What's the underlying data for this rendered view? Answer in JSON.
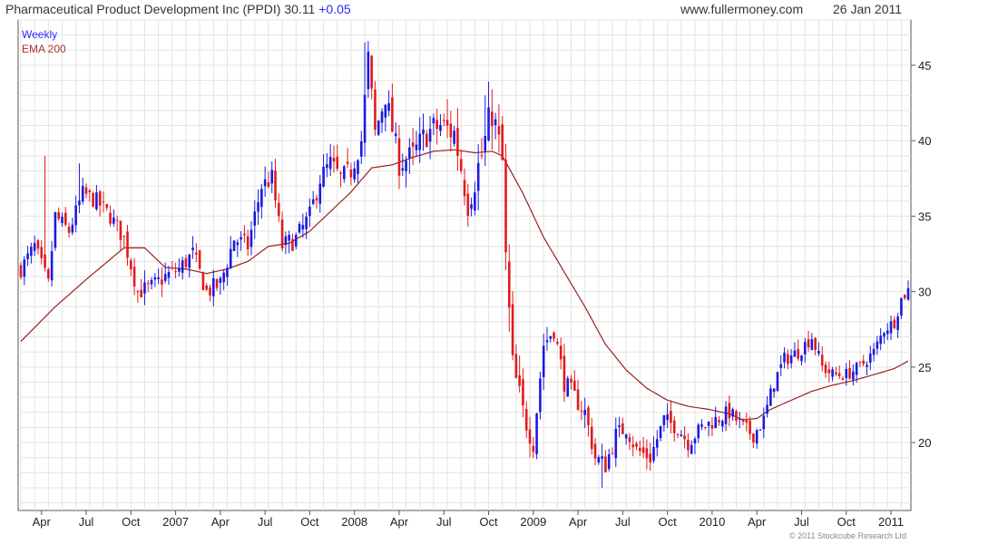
{
  "header": {
    "title": "Pharmaceutical Product Development Inc (PPDI) 30.11",
    "change": "+0.05",
    "site": "www.fullermoney.com",
    "date": "26 Jan 2011"
  },
  "footer": {
    "copyright": "© 2011 Stockcube Research Ltd"
  },
  "colors": {
    "up": "#1a1adf",
    "down": "#e01b1b",
    "ema": "#9a2020",
    "grid": "#e3e3e3",
    "axis": "#555555"
  },
  "chart_data": {
    "type": "candlestick",
    "legend": [
      "Weekly",
      "EMA 200"
    ],
    "ylim": [
      15.5,
      48
    ],
    "y_ticks": [
      20,
      25,
      30,
      35,
      40,
      45
    ],
    "x_ticks": [
      "Apr",
      "Jul",
      "Oct",
      "2007",
      "Apr",
      "Jul",
      "Oct",
      "2008",
      "Apr",
      "Jul",
      "Oct",
      "2009",
      "Apr",
      "Jul",
      "Oct",
      "2010",
      "Apr",
      "Jul",
      "Oct",
      "2011"
    ],
    "x_tick_weeks": [
      6,
      19,
      32,
      45,
      58,
      71,
      84,
      97,
      110,
      123,
      136,
      149,
      162,
      175,
      188,
      201,
      214,
      227,
      240,
      253
    ],
    "weeks": 259,
    "series": [
      {
        "name": "Weekly",
        "close_anchors": [
          [
            0,
            31.5
          ],
          [
            4,
            33
          ],
          [
            8,
            30.5
          ],
          [
            10,
            35
          ],
          [
            14,
            34
          ],
          [
            18,
            36.5
          ],
          [
            22,
            36
          ],
          [
            26,
            35
          ],
          [
            30,
            33.5
          ],
          [
            34,
            30
          ],
          [
            38,
            30.3
          ],
          [
            42,
            31
          ],
          [
            46,
            31.5
          ],
          [
            50,
            32.5
          ],
          [
            54,
            30
          ],
          [
            58,
            30.5
          ],
          [
            62,
            33.5
          ],
          [
            66,
            33
          ],
          [
            70,
            37
          ],
          [
            73,
            37.5
          ],
          [
            76,
            33
          ],
          [
            80,
            33.5
          ],
          [
            84,
            35
          ],
          [
            87,
            37.5
          ],
          [
            90,
            38.5
          ],
          [
            93,
            37.5
          ],
          [
            96,
            38
          ],
          [
            99,
            40
          ],
          [
            101,
            45.5
          ],
          [
            103,
            40.5
          ],
          [
            106,
            43
          ],
          [
            110,
            38.5
          ],
          [
            114,
            39
          ],
          [
            118,
            40.5
          ],
          [
            122,
            41
          ],
          [
            126,
            40.5
          ],
          [
            130,
            36
          ],
          [
            134,
            39
          ],
          [
            137,
            42
          ],
          [
            140,
            38.5
          ],
          [
            141,
            32
          ],
          [
            143,
            25
          ],
          [
            146,
            22
          ],
          [
            149,
            20
          ],
          [
            152,
            26.5
          ],
          [
            155,
            27.5
          ],
          [
            158,
            24
          ],
          [
            161,
            23
          ],
          [
            164,
            22
          ],
          [
            167,
            19
          ],
          [
            170,
            18.5
          ],
          [
            173,
            20.5
          ],
          [
            176,
            21
          ],
          [
            179,
            19.5
          ],
          [
            183,
            19
          ],
          [
            187,
            21.5
          ],
          [
            191,
            21
          ],
          [
            194,
            20
          ],
          [
            198,
            21
          ],
          [
            202,
            21.5
          ],
          [
            206,
            22
          ],
          [
            210,
            21
          ],
          [
            213,
            20.5
          ],
          [
            216,
            21.5
          ],
          [
            219,
            24
          ],
          [
            222,
            25.5
          ],
          [
            226,
            26
          ],
          [
            230,
            27
          ],
          [
            233,
            25
          ],
          [
            236,
            24.5
          ],
          [
            240,
            24.5
          ],
          [
            244,
            25
          ],
          [
            248,
            26
          ],
          [
            251,
            27.5
          ],
          [
            254,
            28
          ],
          [
            256,
            29.5
          ],
          [
            258,
            30.11
          ]
        ],
        "wick_spikes": [
          [
            7,
            39
          ],
          [
            17,
            38.5
          ],
          [
            100,
            46.5
          ],
          [
            135,
            43
          ],
          [
            142,
            28.5
          ],
          [
            169,
            17
          ]
        ],
        "volatility": [
          [
            0,
            1.2
          ],
          [
            100,
            1.6
          ],
          [
            140,
            3.0
          ],
          [
            150,
            1.5
          ],
          [
            259,
            0.9
          ]
        ]
      },
      {
        "name": "EMA 200",
        "anchors": [
          [
            0,
            26.7
          ],
          [
            10,
            29
          ],
          [
            20,
            31
          ],
          [
            30,
            32.9
          ],
          [
            36,
            32.9
          ],
          [
            42,
            31.6
          ],
          [
            48,
            31.5
          ],
          [
            54,
            31.2
          ],
          [
            60,
            31.5
          ],
          [
            66,
            32
          ],
          [
            72,
            33
          ],
          [
            78,
            33.2
          ],
          [
            84,
            34
          ],
          [
            90,
            35.3
          ],
          [
            96,
            36.6
          ],
          [
            102,
            38.2
          ],
          [
            108,
            38.4
          ],
          [
            114,
            38.9
          ],
          [
            120,
            39.3
          ],
          [
            126,
            39.4
          ],
          [
            132,
            39.2
          ],
          [
            137,
            39.3
          ],
          [
            140,
            39
          ],
          [
            146,
            36.5
          ],
          [
            152,
            33.6
          ],
          [
            158,
            31.3
          ],
          [
            164,
            29
          ],
          [
            170,
            26.5
          ],
          [
            176,
            24.8
          ],
          [
            182,
            23.6
          ],
          [
            188,
            22.8
          ],
          [
            194,
            22.4
          ],
          [
            200,
            22.2
          ],
          [
            206,
            21.9
          ],
          [
            210,
            21.5
          ],
          [
            214,
            21.6
          ],
          [
            218,
            22.2
          ],
          [
            224,
            22.8
          ],
          [
            230,
            23.4
          ],
          [
            236,
            23.8
          ],
          [
            242,
            24.1
          ],
          [
            248,
            24.5
          ],
          [
            254,
            24.9
          ],
          [
            258,
            25.4
          ]
        ]
      }
    ]
  }
}
